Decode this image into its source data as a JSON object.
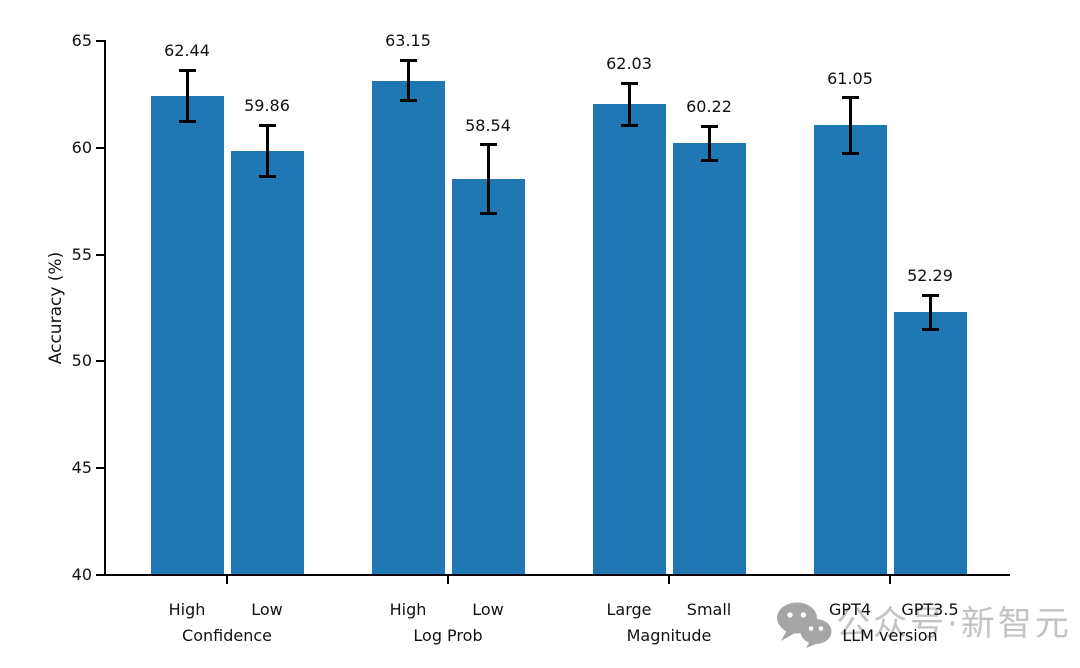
{
  "chart_data": {
    "type": "bar",
    "title": "",
    "xlabel": "",
    "ylabel": "Accuracy (%)",
    "ylim": [
      40,
      65
    ],
    "yticks": [
      40,
      45,
      50,
      55,
      60,
      65
    ],
    "grid": false,
    "legend": "none",
    "bar_color": "#1f77b4",
    "error_bar_color": "#000000",
    "groups": [
      {
        "label": "Confidence",
        "bars": [
          {
            "label": "High",
            "value": 62.44,
            "error": 1.2,
            "value_label": "62.44"
          },
          {
            "label": "Low",
            "value": 59.86,
            "error": 1.2,
            "value_label": "59.86"
          }
        ]
      },
      {
        "label": "Log Prob",
        "bars": [
          {
            "label": "High",
            "value": 63.15,
            "error": 0.95,
            "value_label": "63.15"
          },
          {
            "label": "Low",
            "value": 58.54,
            "error": 1.6,
            "value_label": "58.54"
          }
        ]
      },
      {
        "label": "Magnitude",
        "bars": [
          {
            "label": "Large",
            "value": 62.03,
            "error": 1.0,
            "value_label": "62.03"
          },
          {
            "label": "Small",
            "value": 60.22,
            "error": 0.8,
            "value_label": "60.22"
          }
        ]
      },
      {
        "label": "LLM version",
        "bars": [
          {
            "label": "GPT4",
            "value": 61.05,
            "error": 1.3,
            "value_label": "61.05"
          },
          {
            "label": "GPT3.5",
            "value": 52.29,
            "error": 0.8,
            "value_label": "52.29"
          }
        ]
      }
    ]
  },
  "watermark": {
    "icon": "wechat-icon",
    "text": "公众号·新智元",
    "text_color": "#c3c3c3",
    "icon_color": "#a5a5a5"
  }
}
